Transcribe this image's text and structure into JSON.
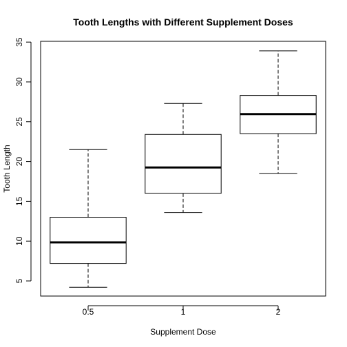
{
  "chart_data": {
    "type": "boxplot",
    "title": "Tooth Lengths with Different Supplement Doses",
    "xlabel": "Supplement Dose",
    "ylabel": "Tooth Length",
    "categories": [
      "0.5",
      "1",
      "2"
    ],
    "ylim": [
      3.1,
      35.1
    ],
    "yticks": [
      "5",
      "10",
      "15",
      "20",
      "25",
      "30",
      "35"
    ],
    "boxes": [
      {
        "category": "0.5",
        "min": 4.2,
        "q1": 7.2,
        "median": 9.85,
        "q3": 13.0,
        "max": 21.5
      },
      {
        "category": "1",
        "min": 13.6,
        "q1": 16.0,
        "median": 19.25,
        "q3": 23.4,
        "max": 27.3
      },
      {
        "category": "2",
        "min": 18.5,
        "q1": 23.5,
        "median": 25.95,
        "q3": 28.3,
        "max": 33.9
      }
    ],
    "grid": false,
    "colors": {
      "box_fill": "#ffffff",
      "stroke": "#000000"
    }
  }
}
